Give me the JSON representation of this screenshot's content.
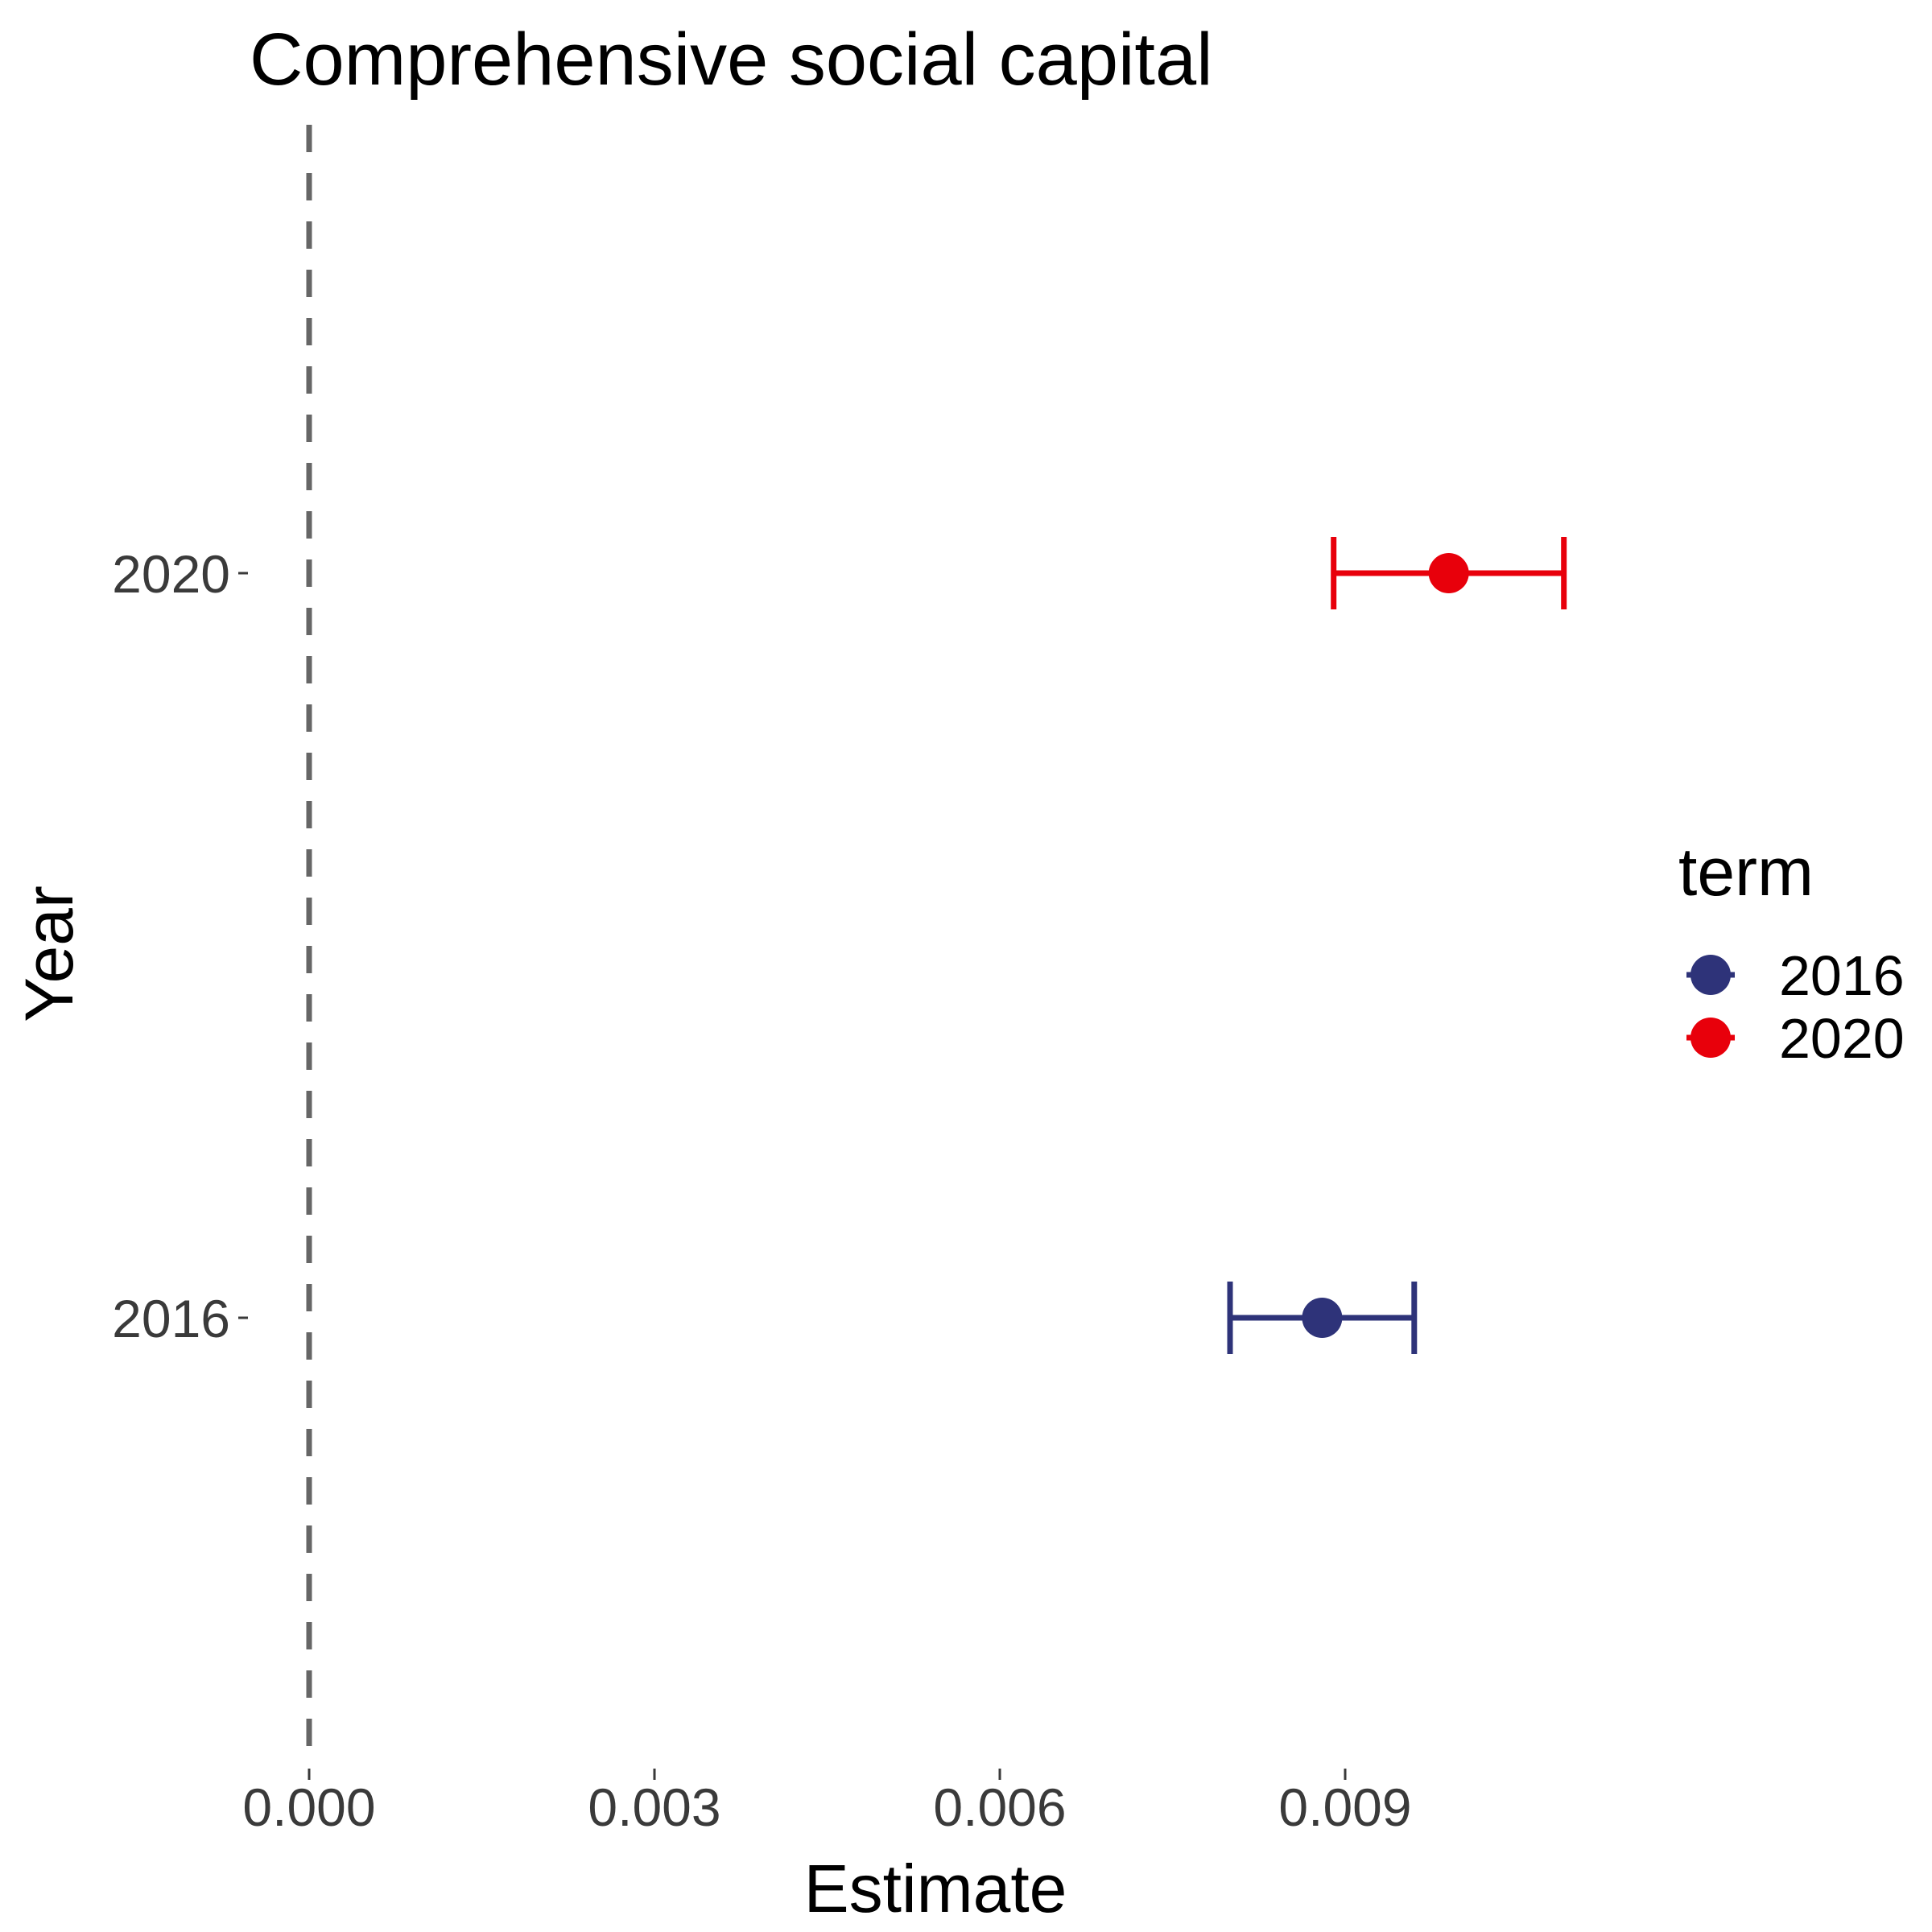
{
  "chart_data": {
    "type": "scatter",
    "title": "Comprehensive social capital",
    "xlabel": "Estimate",
    "ylabel": "Year",
    "xlim": [
      0,
      0.011
    ],
    "x_ticks": [
      "0.000",
      "0.003",
      "0.006",
      "0.009"
    ],
    "x_tick_values": [
      0,
      0.003,
      0.006,
      0.009
    ],
    "categories": [
      "2016",
      "2020"
    ],
    "reference_line": {
      "x": 0,
      "style": "dashed",
      "color": "#666666"
    },
    "grid": false,
    "legend": {
      "title": "term",
      "position": "right"
    },
    "series": [
      {
        "name": "2016",
        "color": "#2e3379",
        "estimate": 0.0088,
        "ci_low": 0.008,
        "ci_high": 0.0096
      },
      {
        "name": "2020",
        "color": "#e8000b",
        "estimate": 0.0099,
        "ci_low": 0.0089,
        "ci_high": 0.0109
      }
    ]
  }
}
